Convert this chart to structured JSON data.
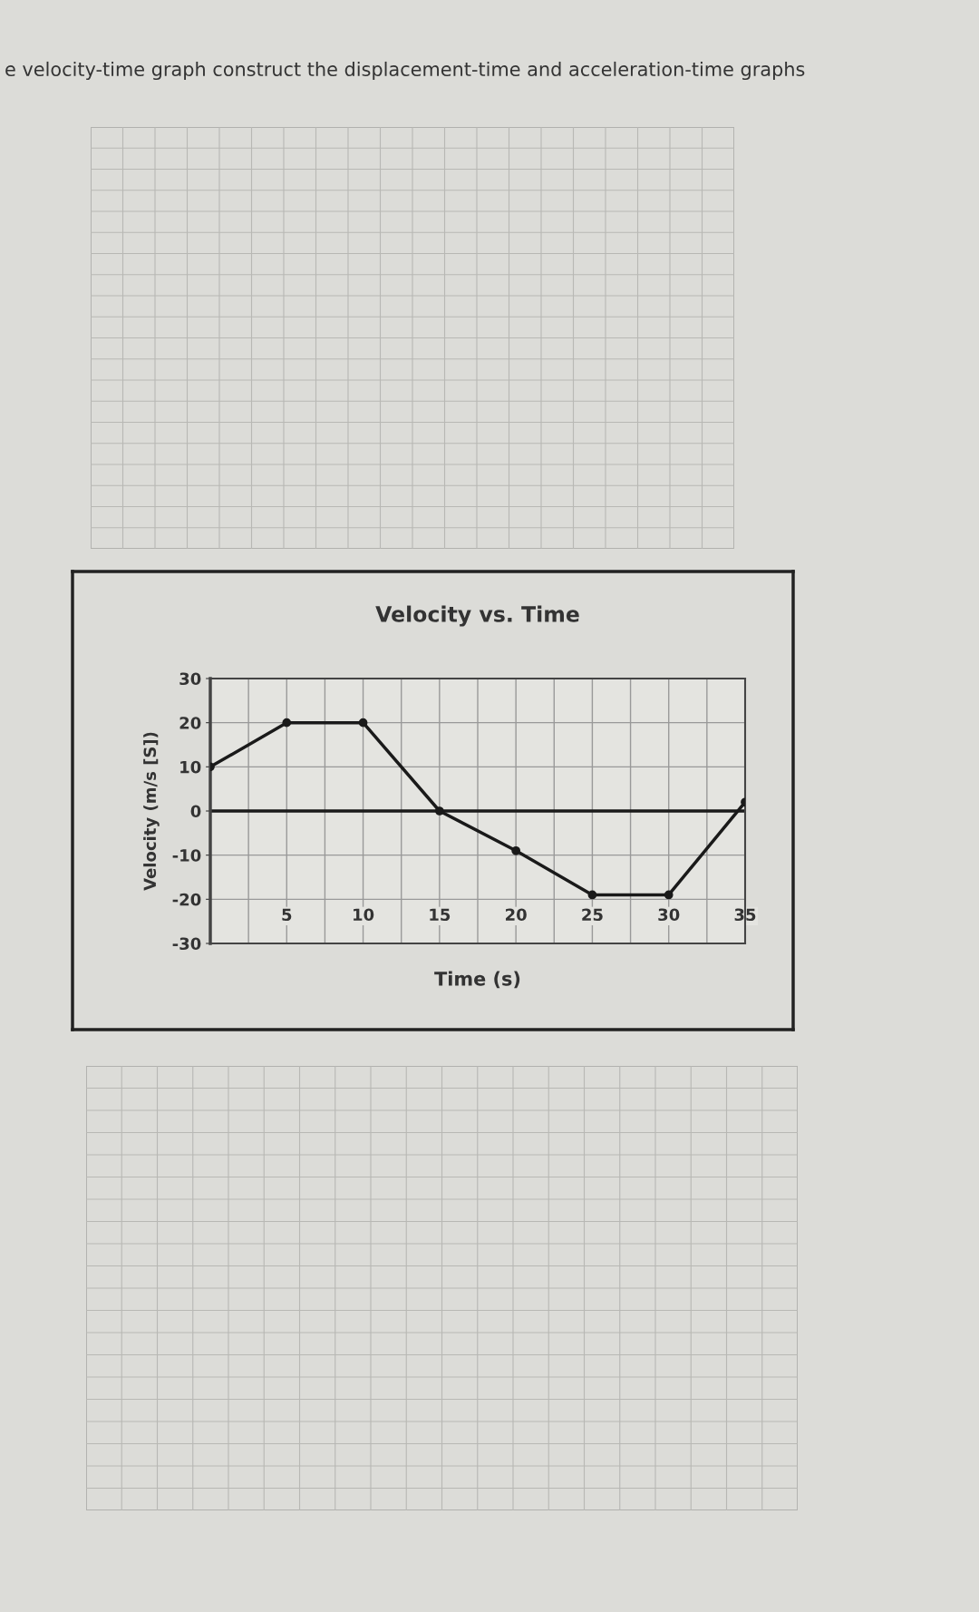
{
  "chart_data": {
    "type": "line",
    "title": "Velocity vs. Time",
    "xlabel": "Time (s)",
    "ylabel": "Velocity (m/s [S])",
    "annotations": [
      "e velocity-time graph construct the displacement-time and acceleration-time graphs"
    ],
    "x": [
      0,
      5,
      10,
      15,
      20,
      25,
      30,
      35
    ],
    "series": [
      {
        "color": "#1a1a1a",
        "values": [
          10,
          20,
          20,
          0,
          -9,
          -19,
          -19,
          2
        ]
      }
    ],
    "xlim": [
      0,
      35
    ],
    "ylim": [
      -30,
      30
    ],
    "xticks": [
      {
        "value": 0,
        "label": null
      },
      {
        "value": 2.5,
        "label": null
      },
      5,
      {
        "value": 7.5,
        "label": null
      },
      10,
      {
        "value": 12.5,
        "label": null
      },
      15,
      {
        "value": 17.5,
        "label": null
      },
      20,
      {
        "value": 22.5,
        "label": null
      },
      25,
      {
        "value": 27.5,
        "label": null
      },
      30,
      {
        "value": 32.5,
        "label": null
      },
      35
    ],
    "yticks": [
      -30,
      -20,
      -10,
      0,
      10,
      20,
      30
    ],
    "ref_lines": [
      {
        "axis": "y",
        "value": 0,
        "color": "#1a1a1a"
      }
    ],
    "grid": true,
    "marker": "circle",
    "line_style": "solid",
    "legend": false
  }
}
